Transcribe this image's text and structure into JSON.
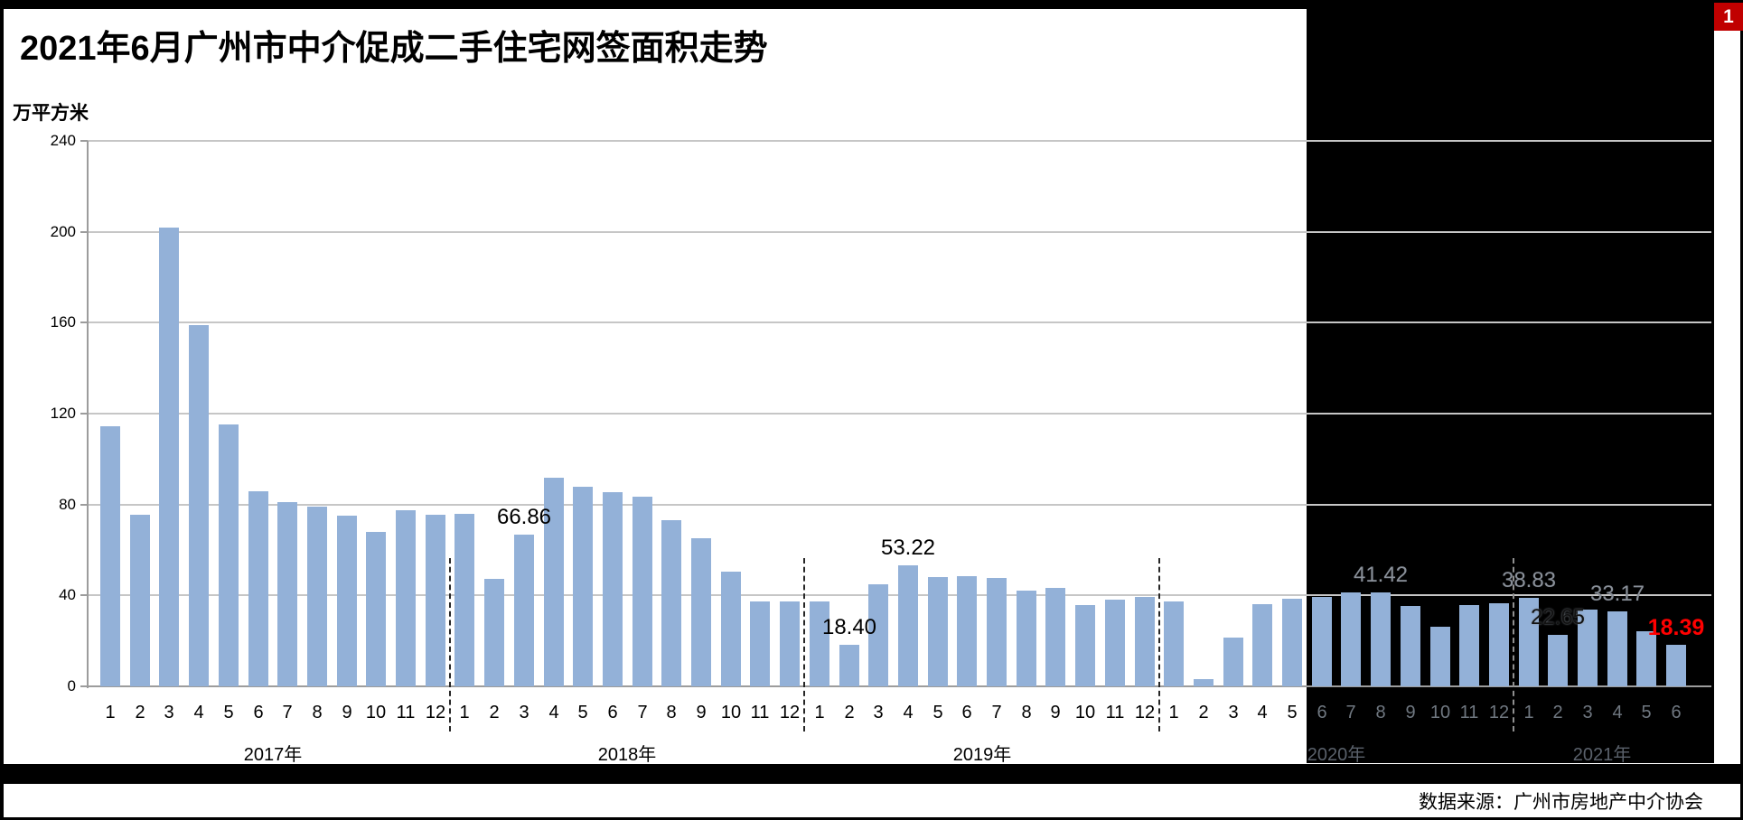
{
  "frame": {
    "badge_number": "1"
  },
  "title": "2021年6月广州市中介促成二手住宅网签面积走势",
  "footer": {
    "source": "数据来源：广州市房地产中介协会"
  },
  "chart_data": {
    "type": "bar",
    "title": "2021年6月广州市中介促成二手住宅网签面积走势",
    "unit_label": "万平方米",
    "ylabel": "万平方米",
    "xlabel": "",
    "ylim": [
      0,
      240
    ],
    "yticks": [
      0,
      40,
      80,
      120,
      160,
      200,
      240
    ],
    "grid": true,
    "legend": "none",
    "year_separators": "dashed",
    "bar_color": "#93B1D8",
    "gridline_color": "#C6C6C6",
    "axis_color": "#9C9C9C",
    "redaction_overlay": {
      "color": "#000000",
      "from": "2020-6",
      "to": "2021-6"
    },
    "years": [
      {
        "label": "2017年",
        "year": "2017",
        "months": [
          "1",
          "2",
          "3",
          "4",
          "5",
          "6",
          "7",
          "8",
          "9",
          "10",
          "11",
          "12"
        ],
        "values": [
          114.5,
          75.6,
          201.7,
          159.0,
          115.4,
          85.8,
          81.0,
          79.2,
          75.1,
          67.9,
          77.6,
          75.3
        ]
      },
      {
        "label": "2018年",
        "year": "2018",
        "months": [
          "1",
          "2",
          "3",
          "4",
          "5",
          "6",
          "7",
          "8",
          "9",
          "10",
          "11",
          "12"
        ],
        "values": [
          76.0,
          47.3,
          66.86,
          91.7,
          87.9,
          85.5,
          83.5,
          73.2,
          65.0,
          50.5,
          37.3,
          37.3
        ]
      },
      {
        "label": "2019年",
        "year": "2019",
        "months": [
          "1",
          "2",
          "3",
          "4",
          "5",
          "6",
          "7",
          "8",
          "9",
          "10",
          "11",
          "12"
        ],
        "values": [
          37.3,
          18.4,
          45.0,
          53.22,
          48.1,
          48.3,
          47.5,
          42.2,
          43.4,
          35.6,
          38.0,
          39.2
        ]
      },
      {
        "label": "2020年",
        "year": "2020",
        "months": [
          "1",
          "2",
          "3",
          "4",
          "5",
          "6",
          "7",
          "8",
          "9",
          "10",
          "11",
          "12"
        ],
        "values": [
          37.3,
          3.3,
          21.5,
          36.2,
          38.6,
          39.5,
          41.2,
          41.42,
          35.4,
          26.2,
          35.7,
          36.5
        ]
      },
      {
        "label": "2021年",
        "year": "2021",
        "months": [
          "1",
          "2",
          "3",
          "4",
          "5",
          "6"
        ],
        "values": [
          38.83,
          22.65,
          33.8,
          33.17,
          24.3,
          18.39
        ]
      }
    ],
    "data_labels": [
      {
        "month": "2018-3",
        "text": "66.86",
        "style": "black"
      },
      {
        "month": "2019-2",
        "text": "18.40",
        "style": "black"
      },
      {
        "month": "2019-4",
        "text": "53.22",
        "style": "black"
      },
      {
        "month": "2020-8",
        "text": "41.42",
        "style": "gray"
      },
      {
        "month": "2021-1",
        "text": "38.83",
        "style": "gray"
      },
      {
        "month": "2021-2",
        "text": "22.65",
        "style": "outline"
      },
      {
        "month": "2021-4",
        "text": "33.17",
        "style": "gray"
      },
      {
        "month": "2021-6",
        "text": "18.39",
        "style": "red"
      }
    ]
  }
}
